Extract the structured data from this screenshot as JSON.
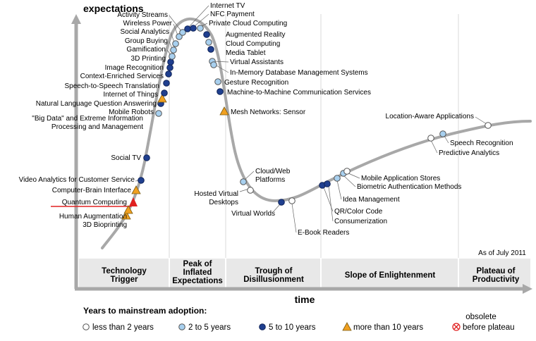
{
  "chart_data": {
    "type": "line",
    "title": "",
    "ylabel": "expectations",
    "xlabel": "time",
    "as_of": "As of July 2011",
    "phases": [
      {
        "name": "Technology Trigger",
        "lines": [
          "Technology",
          "Trigger"
        ]
      },
      {
        "name": "Peak of Inflated Expectations",
        "lines": [
          "Peak of",
          "Inflated",
          "Expectations"
        ]
      },
      {
        "name": "Trough of Disillusionment",
        "lines": [
          "Trough of",
          "Disillusionment"
        ]
      },
      {
        "name": "Slope of Enlightenment",
        "lines": [
          "Slope of Enlightenment"
        ]
      },
      {
        "name": "Plateau of Productivity",
        "lines": [
          "Plateau of",
          "Productivity"
        ]
      }
    ],
    "legend": {
      "title": "Years to mainstream adoption:",
      "items": [
        {
          "key": "lt2",
          "label": "less than 2 years",
          "color": "#ffffff"
        },
        {
          "key": "2to5",
          "label": "2 to 5 years",
          "color": "#a8d0ef"
        },
        {
          "key": "5to10",
          "label": "5 to 10 years",
          "color": "#1f3f8f"
        },
        {
          "key": "gt10",
          "label": "more than 10 years",
          "color": "#f0a020"
        },
        {
          "key": "obsolete",
          "label_lines": [
            "obsolete",
            "before plateau"
          ],
          "color": "#e02020"
        }
      ]
    },
    "colors": {
      "curve": "#a8a8a8",
      "axis": "#a8a8a8",
      "phase_band": "#e6e6e6",
      "highlight": "#e02020"
    },
    "technologies": [
      {
        "name": "3D Bioprinting",
        "category": "gt10"
      },
      {
        "name": "Human Augmentation",
        "category": "gt10"
      },
      {
        "name": "Quantum Computing",
        "category": "gt10",
        "highlighted": true
      },
      {
        "name": "Computer-Brain Interface",
        "category": "gt10"
      },
      {
        "name": "Video Analytics for Customer Service",
        "category": "5to10"
      },
      {
        "name": "Social TV",
        "category": "5to10"
      },
      {
        "name": "\"Big Data\" and Extreme Information Processing and Management",
        "lines": [
          "\"Big Data\" and Extreme Information",
          "Processing and Management"
        ],
        "category": "2to5"
      },
      {
        "name": "Mobile Robots",
        "category": "5to10"
      },
      {
        "name": "Natural Language Question Answering",
        "category": "gt10"
      },
      {
        "name": "Internet of Things",
        "category": "5to10"
      },
      {
        "name": "Speech-to-Speech Translation",
        "category": "5to10"
      },
      {
        "name": "Context-Enriched Services",
        "category": "5to10"
      },
      {
        "name": "Image Recognition",
        "category": "5to10"
      },
      {
        "name": "3D Printing",
        "category": "5to10"
      },
      {
        "name": "Gamification",
        "category": "2to5"
      },
      {
        "name": "Group Buying",
        "category": "2to5"
      },
      {
        "name": "Social Analytics",
        "category": "2to5"
      },
      {
        "name": "Wireless Power",
        "category": "2to5"
      },
      {
        "name": "Activity Streams",
        "category": "2to5"
      },
      {
        "name": "Internet TV",
        "category": "5to10"
      },
      {
        "name": "NFC Payment",
        "category": "5to10"
      },
      {
        "name": "Private Cloud Computing",
        "category": "2to5"
      },
      {
        "name": "Augmented Reality",
        "category": "5to10"
      },
      {
        "name": "Cloud Computing",
        "category": "2to5"
      },
      {
        "name": "Media Tablet",
        "category": "5to10"
      },
      {
        "name": "Virtual Assistants",
        "category": "2to5"
      },
      {
        "name": "In-Memory Database Management Systems",
        "category": "2to5"
      },
      {
        "name": "Gesture Recognition",
        "category": "2to5"
      },
      {
        "name": "Machine-to-Machine Communication Services",
        "category": "5to10"
      },
      {
        "name": "Mesh Networks: Sensor",
        "category": "gt10"
      },
      {
        "name": "Cloud/Web Platforms",
        "lines": [
          "Cloud/Web",
          "Platforms"
        ],
        "category": "2to5"
      },
      {
        "name": "Hosted Virtual Desktops",
        "lines": [
          "Hosted Virtual",
          "Desktops"
        ],
        "category": "lt2"
      },
      {
        "name": "Virtual Worlds",
        "category": "5to10"
      },
      {
        "name": "E-Book Readers",
        "category": "lt2"
      },
      {
        "name": "QR/Color Code",
        "category": "5to10"
      },
      {
        "name": "Consumerization",
        "category": "5to10"
      },
      {
        "name": "Idea Management",
        "category": "2to5"
      },
      {
        "name": "Biometric Authentication Methods",
        "category": "2to5"
      },
      {
        "name": "Mobile Application Stores",
        "category": "lt2"
      },
      {
        "name": "Predictive Analytics",
        "category": "lt2"
      },
      {
        "name": "Speech Recognition",
        "category": "2to5"
      },
      {
        "name": "Location-Aware Applications",
        "category": "lt2"
      }
    ]
  }
}
